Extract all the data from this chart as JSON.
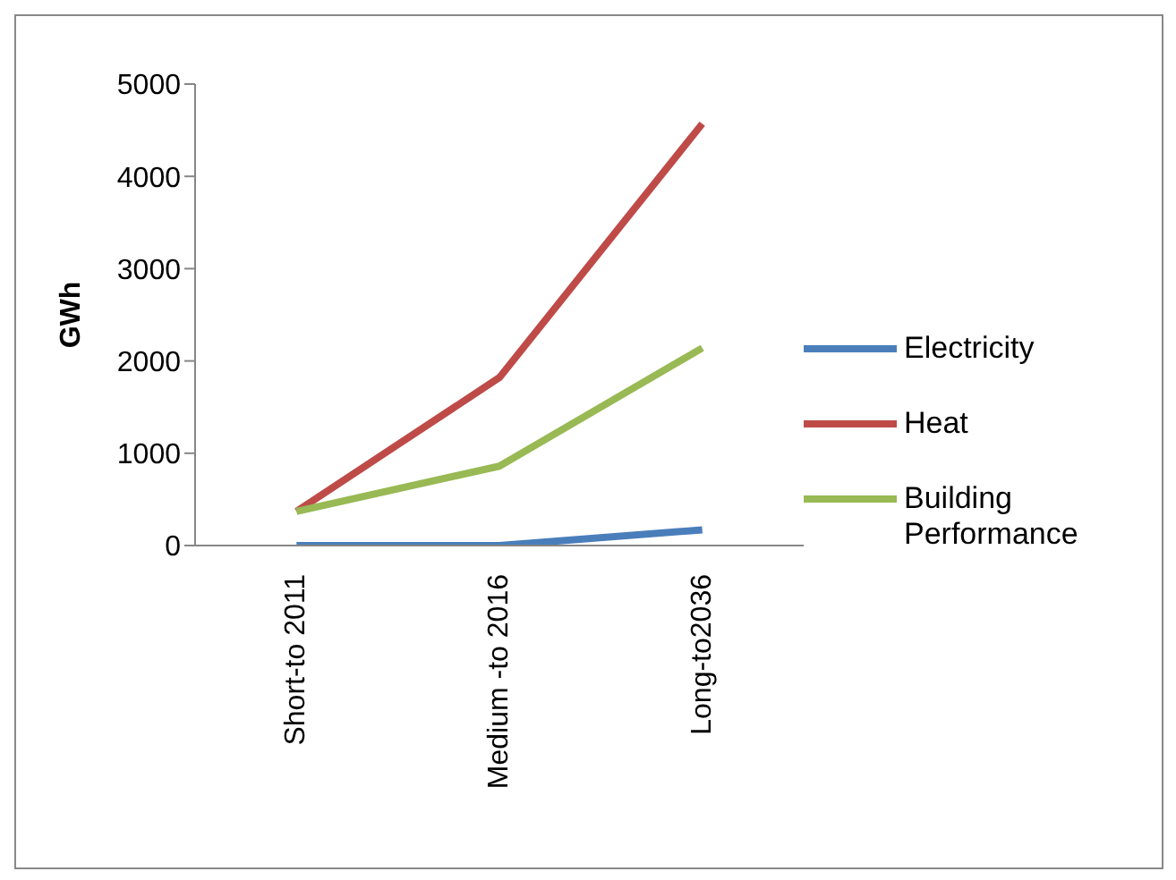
{
  "chart_data": {
    "type": "line",
    "ylabel": "GWh",
    "categories": [
      "Short-to 2011",
      "Medium -to 2016",
      "Long-to2036"
    ],
    "series": [
      {
        "name": "Electricity",
        "color": "#4a7ebb",
        "values": [
          0,
          0,
          170
        ]
      },
      {
        "name": "Heat",
        "color": "#be4b48",
        "values": [
          370,
          1820,
          4570
        ]
      },
      {
        "name": "Building Performance",
        "color": "#98b954",
        "values": [
          370,
          860,
          2140
        ]
      }
    ],
    "ylim": [
      0,
      5000
    ],
    "yticks": [
      0,
      1000,
      2000,
      3000,
      4000,
      5000
    ],
    "grid": false,
    "legend": "right",
    "marker": "none",
    "line_style": "solid"
  }
}
